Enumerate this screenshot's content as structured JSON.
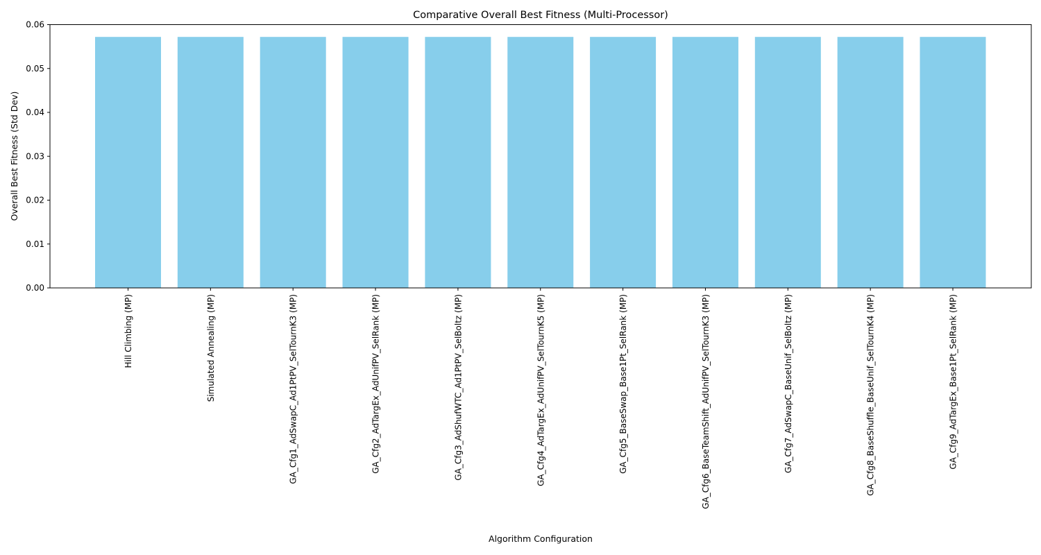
{
  "chart_data": {
    "type": "bar",
    "title": "Comparative Overall Best Fitness (Multi-Processor)",
    "xlabel": "Algorithm Configuration",
    "ylabel": "Overall Best Fitness (Std Dev)",
    "ylim": [
      0,
      0.06
    ],
    "yticks": [
      "0.00",
      "0.01",
      "0.02",
      "0.03",
      "0.04",
      "0.05",
      "0.06"
    ],
    "grid": false,
    "bar_color": "#87ceeb",
    "categories": [
      "Hill Climbing (MP)",
      "Simulated Annealing (MP)",
      "GA_Cfg1_AdSwapC_Ad1PtPV_SelTournK3 (MP)",
      "GA_Cfg2_AdTargEx_AdUnifPV_SelRank (MP)",
      "GA_Cfg3_AdShufWTC_Ad1PtPV_SelBoltz (MP)",
      "GA_Cfg4_AdTargEx_AdUnifPV_SelTournK5 (MP)",
      "GA_Cfg5_BaseSwap_Base1Pt_SelRank (MP)",
      "GA_Cfg6_BaseTeamShift_AdUnifPV_SelTournK3 (MP)",
      "GA_Cfg7_AdSwapC_BaseUnif_SelBoltz (MP)",
      "GA_Cfg8_BaseShuffle_BaseUnif_SelTournK4 (MP)",
      "GA_Cfg9_AdTargEx_Base1Pt_SelRank (MP)"
    ],
    "values": [
      0.0572,
      0.0572,
      0.0572,
      0.0572,
      0.0572,
      0.0572,
      0.0572,
      0.0572,
      0.0572,
      0.0572,
      0.0572
    ]
  }
}
